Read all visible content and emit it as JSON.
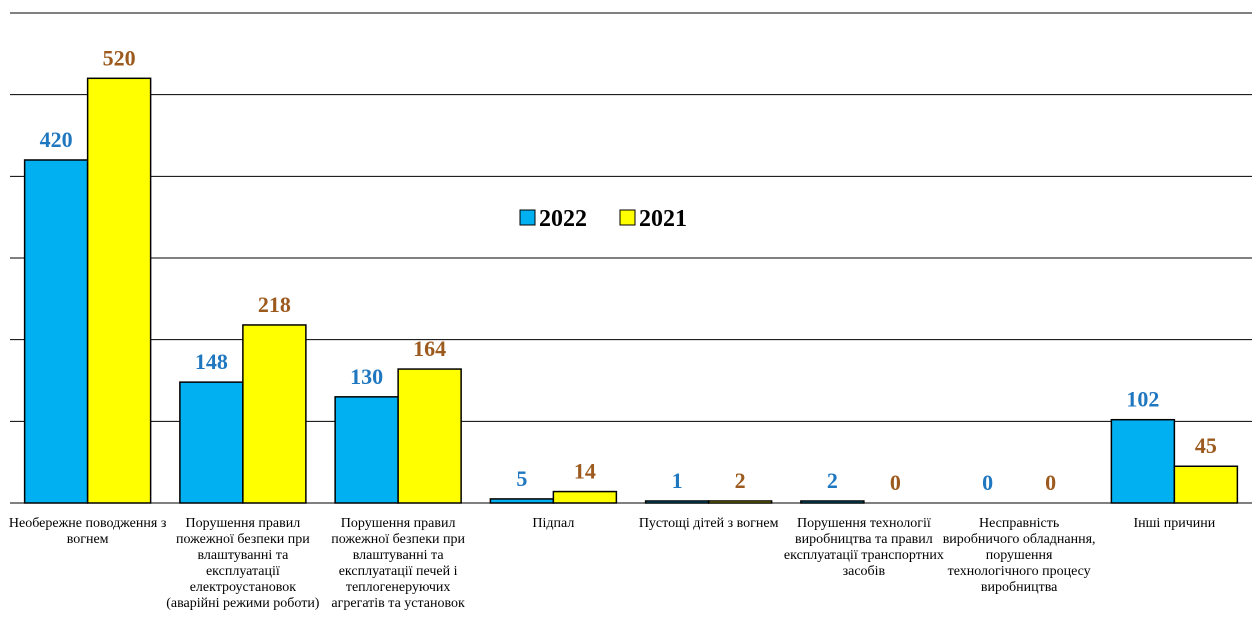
{
  "chart_data": {
    "type": "bar",
    "categories": [
      "Необережне поводження з вогнем",
      "Порушення правил пожежної безпеки при влаштуванні та експлуатації електроустановок (аварійні режими роботи)",
      "Порушення правил пожежної безпеки при влаштуванні та експлуатації печей і теплогенеруючих агрегатів та установок",
      "Підпал",
      "Пустощі дітей з вогнем",
      "Порушення технології виробництва та правил експлуатації транспортних засобів",
      "Несправність виробничого обладнання, порушення технологічного процесу виробництва",
      "Інші причини"
    ],
    "series": [
      {
        "name": "2022",
        "values": [
          420,
          148,
          130,
          5,
          1,
          2,
          0,
          102
        ],
        "color": "#00B0F0",
        "label_color": "#1F77C0"
      },
      {
        "name": "2021",
        "values": [
          520,
          218,
          164,
          14,
          2,
          0,
          0,
          45
        ],
        "color": "#FFFF00",
        "label_color": "#9C5A1E"
      }
    ],
    "ylim": [
      0,
      600
    ],
    "grid": true,
    "legend": "center",
    "title": "",
    "xlabel": "",
    "ylabel": ""
  }
}
